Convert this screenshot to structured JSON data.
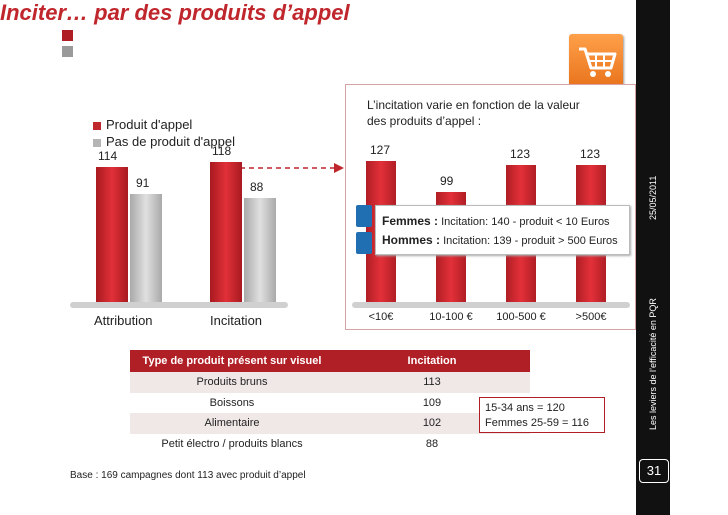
{
  "title": "Inciter… par des produits d’appel",
  "sidebar": {
    "date": "25/05/2011",
    "subtitle": "Les leviers de l’efficacité en PQR",
    "page_number": "31"
  },
  "icon": "shopping-cart-icon",
  "left_chart": {
    "legend": [
      "Produit d'appel",
      "Pas de produit d'appel"
    ],
    "categories": [
      "Attribution",
      "Incitation"
    ],
    "series": [
      {
        "name": "Produit d'appel",
        "values": [
          114,
          118
        ]
      },
      {
        "name": "Pas de produit d'appel",
        "values": [
          91,
          88
        ]
      }
    ],
    "value_labels": [
      [
        "114",
        "91"
      ],
      [
        "118",
        "88"
      ]
    ],
    "ylim": [
      0,
      135
    ]
  },
  "right_chart": {
    "hint": "L’incitation varie en fonction de la valeur des produits d’appel :",
    "categories": [
      "<10€",
      "10-100 €",
      "100-500 €",
      ">500€"
    ],
    "values": [
      127,
      99,
      123,
      123
    ],
    "value_labels": [
      "127",
      "99",
      "123",
      "123"
    ],
    "ylim": [
      0,
      135
    ],
    "legend": [
      {
        "label": "Femmes :",
        "text": "Incitation: 140  - produit < 10 Euros"
      },
      {
        "label": "Hommes :",
        "text": "Incitation: 139 - produit > 500 Euros"
      }
    ]
  },
  "chart_data": [
    {
      "type": "bar",
      "categories": [
        "Attribution",
        "Incitation"
      ],
      "series": [
        {
          "name": "Produit d'appel",
          "values": [
            114,
            118
          ]
        },
        {
          "name": "Pas de produit d'appel",
          "values": [
            91,
            88
          ]
        }
      ]
    },
    {
      "type": "bar",
      "categories": [
        "<10€",
        "10-100 €",
        "100-500 €",
        ">500€"
      ],
      "values": [
        127,
        99,
        123,
        123
      ]
    }
  ],
  "table": {
    "headers": [
      "Type de produit présent sur visuel",
      "Incitation"
    ],
    "rows": [
      [
        "Produits bruns",
        "113"
      ],
      [
        "Boissons",
        "109"
      ],
      [
        "Alimentaire",
        "102"
      ],
      [
        "Petit électro / produits blancs",
        "88"
      ]
    ]
  },
  "note": [
    "15-34 ans = 120",
    "Femmes 25-59 = 116"
  ],
  "base": "Base : 169 campagnes dont 113 avec produit d’appel",
  "colors": {
    "accent": "#c0272d",
    "grey_bar": "#c8c8c8",
    "sidebar": "#111111"
  }
}
